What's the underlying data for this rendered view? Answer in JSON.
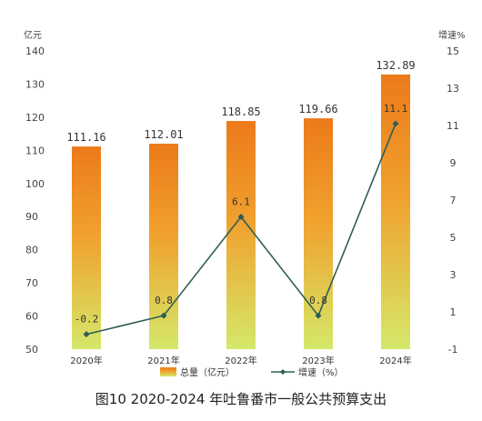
{
  "chart_data": {
    "type": "bar",
    "caption": "图10   2020-2024 年吐鲁番市一般公共预算支出",
    "categories": [
      "2020年",
      "2021年",
      "2022年",
      "2023年",
      "2024年"
    ],
    "series": [
      {
        "name": "总量（亿元）",
        "type": "bar",
        "axis": "left",
        "values": [
          111.16,
          112.01,
          118.85,
          119.66,
          132.89
        ],
        "labels": [
          "111.16",
          "112.01",
          "118.85",
          "119.66",
          "132.89"
        ]
      },
      {
        "name": "增速（%）",
        "type": "line",
        "axis": "right",
        "values": [
          -0.2,
          0.8,
          6.1,
          0.8,
          11.1
        ],
        "labels": [
          "-0.2",
          "0.8",
          "6.1",
          "0.8",
          "11.1"
        ]
      }
    ],
    "y_left": {
      "unit": "亿元",
      "range": [
        50,
        140
      ],
      "ticks": [
        "50",
        "60",
        "70",
        "80",
        "90",
        "100",
        "110",
        "120",
        "130",
        "140"
      ]
    },
    "y_right": {
      "unit": "增速%",
      "range": [
        -1,
        15
      ],
      "ticks": [
        "-1",
        "1",
        "3",
        "5",
        "7",
        "9",
        "11",
        "13",
        "15"
      ]
    },
    "legend_position": "bottom",
    "grid": false,
    "colors": {
      "bar_top": "#ec7a1a",
      "bar_bottom": "#d5e86a",
      "line": "#2e5e56"
    }
  }
}
